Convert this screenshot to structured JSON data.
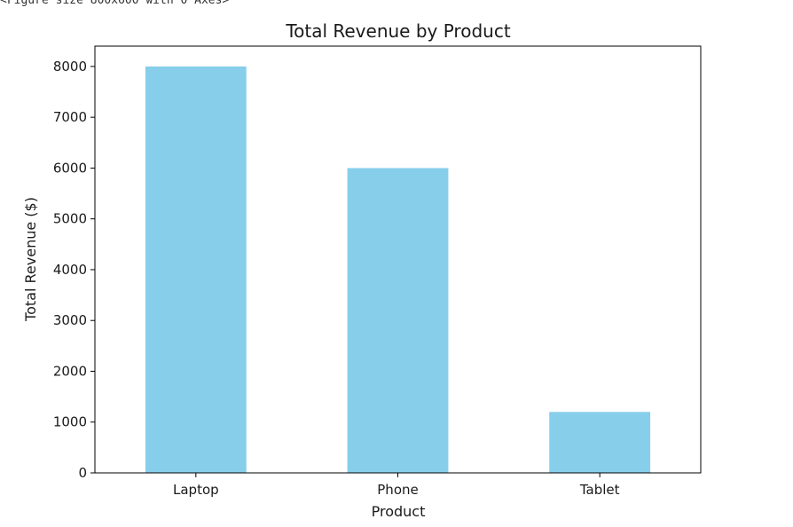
{
  "output_note": "<Figure size 800x600 with 0 Axes>",
  "chart_data": {
    "type": "bar",
    "title": "Total Revenue by Product",
    "xlabel": "Product",
    "ylabel": "Total Revenue ($)",
    "categories": [
      "Laptop",
      "Phone",
      "Tablet"
    ],
    "values": [
      8000,
      6000,
      1200
    ],
    "ylim": [
      0,
      8400
    ],
    "yticks": [
      0,
      1000,
      2000,
      3000,
      4000,
      5000,
      6000,
      7000,
      8000
    ],
    "bar_color": "#87CEEB",
    "grid": false
  }
}
